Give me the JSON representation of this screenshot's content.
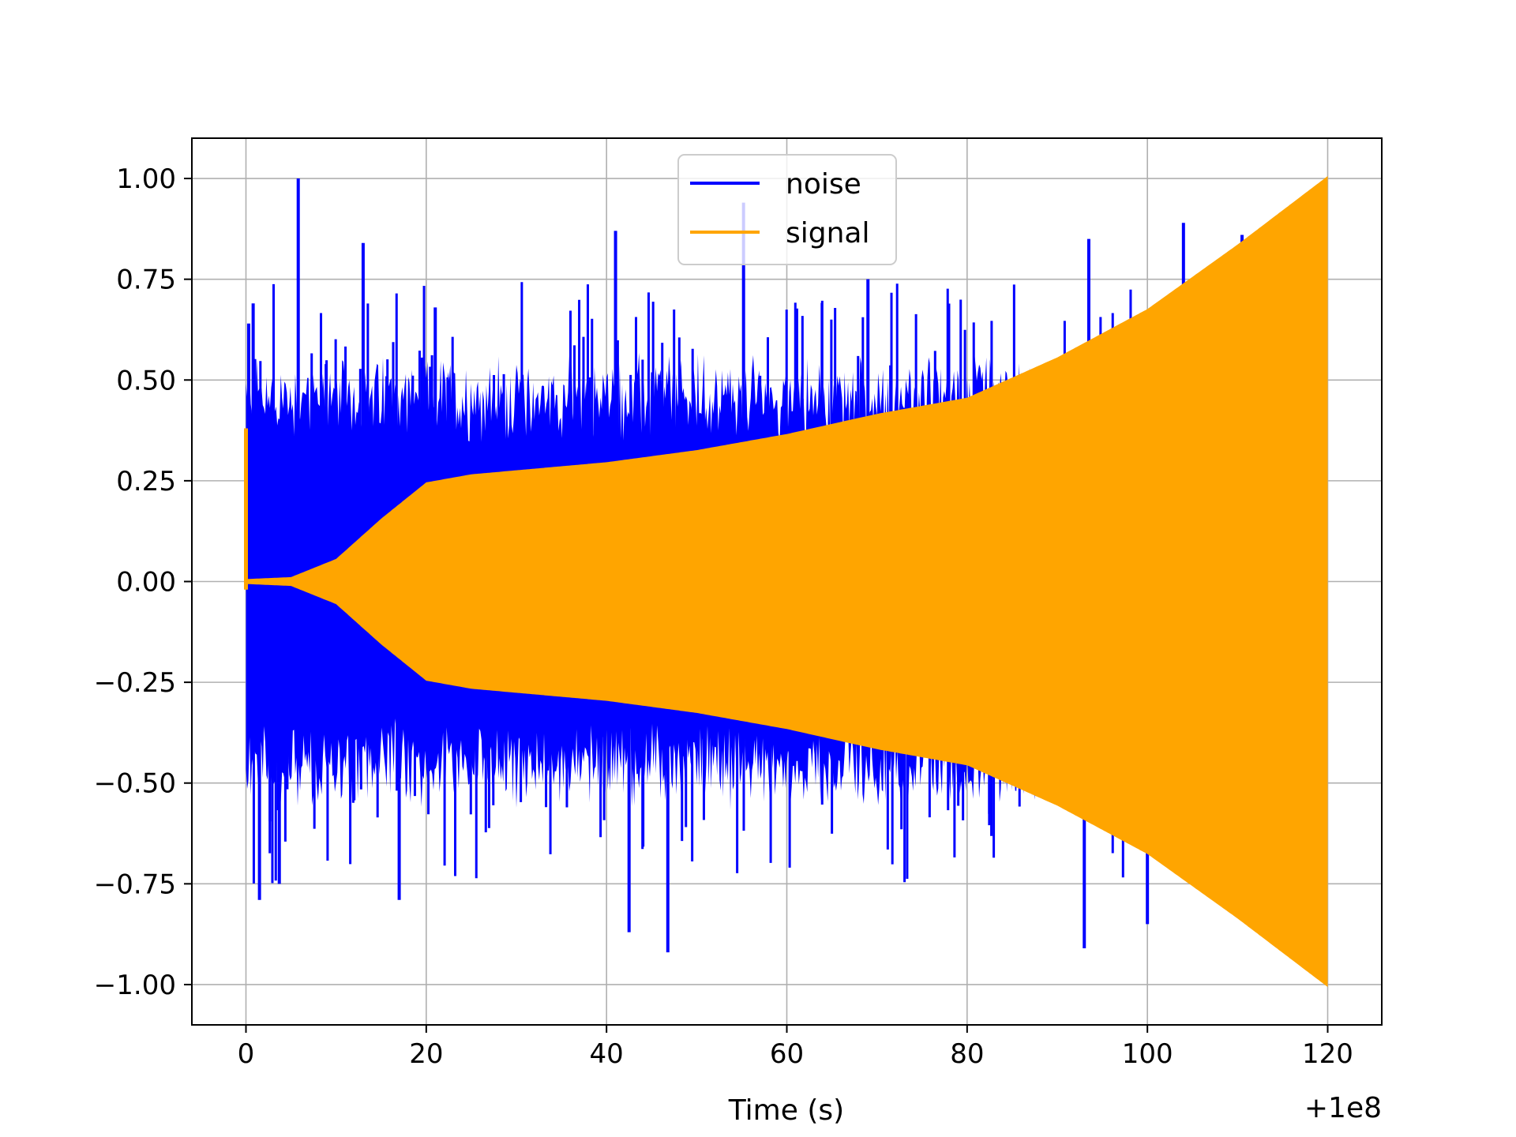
{
  "chart_data": {
    "type": "line",
    "title": "",
    "xlabel": "Time (s)",
    "ylabel": "",
    "x_offset_label": "+1e8",
    "xlim": [
      -6,
      126
    ],
    "ylim": [
      -1.1,
      1.1
    ],
    "x_ticks": [
      0,
      20,
      40,
      60,
      80,
      100,
      120
    ],
    "x_tick_labels": [
      "0",
      "20",
      "40",
      "60",
      "80",
      "100",
      "120"
    ],
    "y_ticks": [
      1.0,
      0.75,
      0.5,
      0.25,
      0.0,
      -0.25,
      -0.5,
      -0.75,
      -1.0
    ],
    "y_tick_labels": [
      "1.00",
      "0.75",
      "0.50",
      "0.25",
      "0.00",
      "−0.25",
      "−0.50",
      "−0.75",
      "−1.00"
    ],
    "grid": true,
    "legend_position": "top-center",
    "series": [
      {
        "name": "noise",
        "color": "#0000ff",
        "x_range": [
          0,
          120
        ],
        "typical_envelope": 0.45,
        "spikes_up": [
          [
            0.3,
            0.64
          ],
          [
            0.8,
            0.69
          ],
          [
            5.8,
            1.0
          ],
          [
            13,
            0.84
          ],
          [
            21,
            0.68
          ],
          [
            41,
            0.87
          ],
          [
            55.2,
            0.94
          ],
          [
            69,
            0.75
          ],
          [
            93.5,
            0.85
          ],
          [
            104,
            0.89
          ],
          [
            110.5,
            0.86
          ]
        ],
        "spikes_down": [
          [
            1.5,
            -0.79
          ],
          [
            3.7,
            -0.75
          ],
          [
            17,
            -0.79
          ],
          [
            42.5,
            -0.87
          ],
          [
            46.8,
            -0.92
          ],
          [
            93,
            -0.91
          ],
          [
            100,
            -0.85
          ]
        ]
      },
      {
        "name": "signal",
        "color": "#ffa500",
        "x_range": [
          0,
          120
        ],
        "envelope": [
          [
            0,
            0.0
          ],
          [
            5,
            0.005
          ],
          [
            10,
            0.05
          ],
          [
            15,
            0.15
          ],
          [
            20,
            0.24
          ],
          [
            25,
            0.26
          ],
          [
            40,
            0.29
          ],
          [
            50,
            0.32
          ],
          [
            60,
            0.36
          ],
          [
            70,
            0.41
          ],
          [
            80,
            0.45
          ],
          [
            90,
            0.55
          ],
          [
            100,
            0.67
          ],
          [
            110,
            0.83
          ],
          [
            120,
            1.0
          ]
        ],
        "initial_spike": [
          [
            0.0,
            0.38
          ],
          [
            0.2,
            -0.02
          ]
        ]
      }
    ]
  }
}
